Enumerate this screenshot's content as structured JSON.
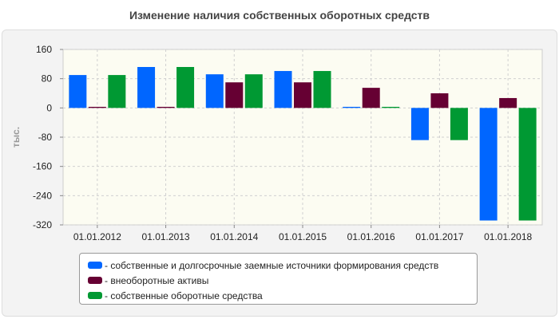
{
  "chart_data": {
    "type": "bar",
    "title": "Изменение наличия собственных оборотных средств",
    "ylabel": "тыс.",
    "xlabel": "",
    "ylim": [
      -320,
      160
    ],
    "yticks": [
      160,
      80,
      0,
      -80,
      -160,
      -240,
      -320
    ],
    "grid": true,
    "legend_position": "bottom",
    "categories": [
      "01.01.2012",
      "01.01.2013",
      "01.01.2014",
      "01.01.2015",
      "01.01.2016",
      "01.01.2017",
      "01.01.2018"
    ],
    "series": [
      {
        "name": "- собственные и долгосрочные заемные источники формирования средств",
        "color": "#0066ff",
        "values": [
          90,
          112,
          92,
          101,
          3,
          -88,
          -308
        ]
      },
      {
        "name": "- внеоборотные активы",
        "color": "#660033",
        "values": [
          3,
          3,
          70,
          70,
          55,
          40,
          27
        ]
      },
      {
        "name": "- собственные оборотные средства",
        "color": "#009933",
        "values": [
          90,
          112,
          92,
          101,
          3,
          -88,
          -308
        ]
      }
    ]
  }
}
